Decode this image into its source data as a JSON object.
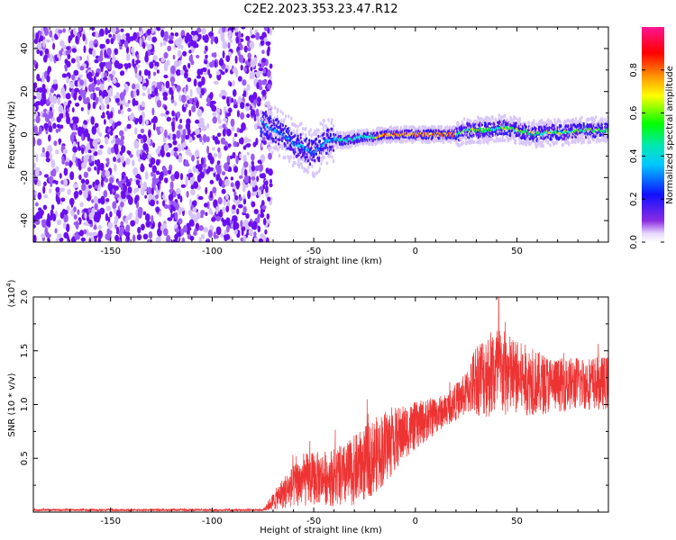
{
  "title": "C2E2.2023.353.23.47.R12",
  "colorbar": {
    "label": "Normalized spectral amplitude",
    "ticks": [
      "0.0",
      "0.2",
      "0.4",
      "0.6",
      "0.8"
    ],
    "range": [
      0,
      1
    ],
    "colormap": "rainbow (violet to red to magenta)"
  },
  "chart_data": [
    {
      "type": "heatmap",
      "name": "top-panel",
      "xlabel": "Height of straight line (km)",
      "ylabel": "Frequency (Hz)",
      "xlim": [
        -188,
        95
      ],
      "ylim": [
        -50,
        50
      ],
      "xticks": [
        "-150",
        "-100",
        "-50",
        "0",
        "50"
      ],
      "yticks": [
        "-40",
        "-20",
        "0",
        "20",
        "40"
      ],
      "noise_region_x": [
        -188,
        -75
      ],
      "noise_color": "#7b1ff2",
      "signal_center_hz": [
        [
          -75,
          6
        ],
        [
          -70,
          2
        ],
        [
          -65,
          0
        ],
        [
          -60,
          -4
        ],
        [
          -55,
          -6
        ],
        [
          -50,
          -9
        ],
        [
          -45,
          -4
        ],
        [
          -40,
          -2
        ],
        [
          -35,
          -3
        ],
        [
          -30,
          -2
        ],
        [
          -25,
          -1
        ],
        [
          -20,
          -1
        ],
        [
          -15,
          0
        ],
        [
          -10,
          0
        ],
        [
          -5,
          0
        ],
        [
          0,
          0
        ],
        [
          5,
          0
        ],
        [
          10,
          0
        ],
        [
          15,
          0
        ],
        [
          20,
          0
        ],
        [
          25,
          2
        ],
        [
          30,
          2
        ],
        [
          35,
          2
        ],
        [
          40,
          3
        ],
        [
          45,
          3
        ],
        [
          50,
          2
        ],
        [
          55,
          1
        ],
        [
          60,
          0
        ],
        [
          65,
          1
        ],
        [
          70,
          1
        ],
        [
          75,
          1
        ],
        [
          80,
          2
        ],
        [
          85,
          2
        ],
        [
          90,
          2
        ],
        [
          95,
          2
        ]
      ],
      "grid": false
    },
    {
      "type": "line",
      "name": "bottom-panel",
      "xlabel": "Height of straight line (km)",
      "ylabel": "SNR (10 * v/v)",
      "scale_label": "(x10^4)",
      "xlim": [
        -188,
        95
      ],
      "ylim": [
        0,
        2.0
      ],
      "xticks": [
        "-150",
        "-100",
        "-50",
        "0",
        "50"
      ],
      "yticks": [
        "0.5",
        "1.0",
        "1.5",
        "2.0"
      ],
      "color": "#ee3333",
      "envelope": [
        {
          "x": -188,
          "mean": 0.02,
          "amp": 0.01
        },
        {
          "x": -75,
          "mean": 0.02,
          "amp": 0.01
        },
        {
          "x": -65,
          "mean": 0.18,
          "amp": 0.15
        },
        {
          "x": -55,
          "mean": 0.3,
          "amp": 0.25
        },
        {
          "x": -45,
          "mean": 0.32,
          "amp": 0.25
        },
        {
          "x": -35,
          "mean": 0.33,
          "amp": 0.3
        },
        {
          "x": -25,
          "mean": 0.45,
          "amp": 0.35
        },
        {
          "x": -15,
          "mean": 0.6,
          "amp": 0.35
        },
        {
          "x": -5,
          "mean": 0.75,
          "amp": 0.25
        },
        {
          "x": 5,
          "mean": 0.85,
          "amp": 0.2
        },
        {
          "x": 15,
          "mean": 0.95,
          "amp": 0.15
        },
        {
          "x": 25,
          "mean": 1.1,
          "amp": 0.2
        },
        {
          "x": 30,
          "mean": 1.25,
          "amp": 0.35
        },
        {
          "x": 40,
          "mean": 1.3,
          "amp": 0.45
        },
        {
          "x": 50,
          "mean": 1.25,
          "amp": 0.35
        },
        {
          "x": 60,
          "mean": 1.2,
          "amp": 0.3
        },
        {
          "x": 70,
          "mean": 1.18,
          "amp": 0.25
        },
        {
          "x": 80,
          "mean": 1.2,
          "amp": 0.25
        },
        {
          "x": 95,
          "mean": 1.2,
          "amp": 0.25
        }
      ],
      "peak": {
        "x": 41,
        "y": 2.0
      },
      "grid": false
    }
  ]
}
